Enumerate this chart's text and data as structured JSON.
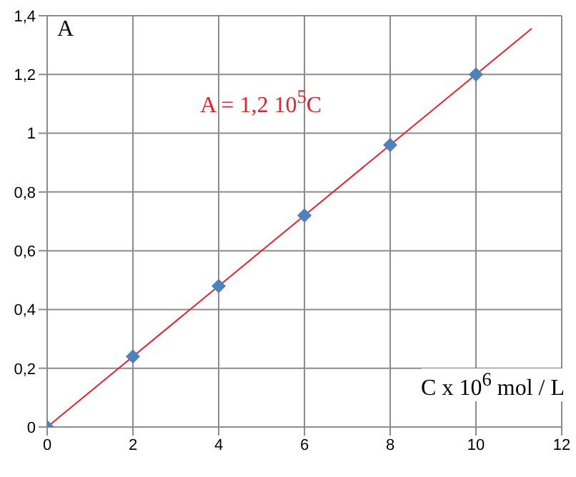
{
  "chart_data": {
    "type": "scatter",
    "ylabel": "A",
    "xlabel": "C x 10$^{6}$ mol / L",
    "annotations": [
      "A = 1,2 10$^{5}$C"
    ],
    "x": [
      0,
      2,
      4,
      6,
      8,
      10
    ],
    "series": [
      {
        "color": "#4f81bd",
        "values": [
          0,
          0.24,
          0.48,
          0.72,
          0.96,
          1.2
        ],
        "marker": "diamond"
      },
      {
        "type": "line",
        "color": "#e8202a",
        "x": [
          0,
          11.3
        ],
        "values": [
          0,
          1.356
        ],
        "marker": "none"
      }
    ],
    "xlim": [
      0,
      12
    ],
    "xticks": [
      0,
      2,
      4,
      6,
      8,
      10,
      12
    ],
    "ylim": [
      0,
      1.4
    ],
    "yticks": [
      0,
      {
        "value": 0.2,
        "label": "0,2"
      },
      {
        "value": 0.4,
        "label": "0,4"
      },
      {
        "value": 0.6,
        "label": "0,6"
      },
      {
        "value": 0.8,
        "label": "0,8"
      },
      1,
      {
        "value": 1.2,
        "label": "1,2"
      },
      {
        "value": 1.4,
        "label": "1,4"
      }
    ],
    "grid": true
  }
}
